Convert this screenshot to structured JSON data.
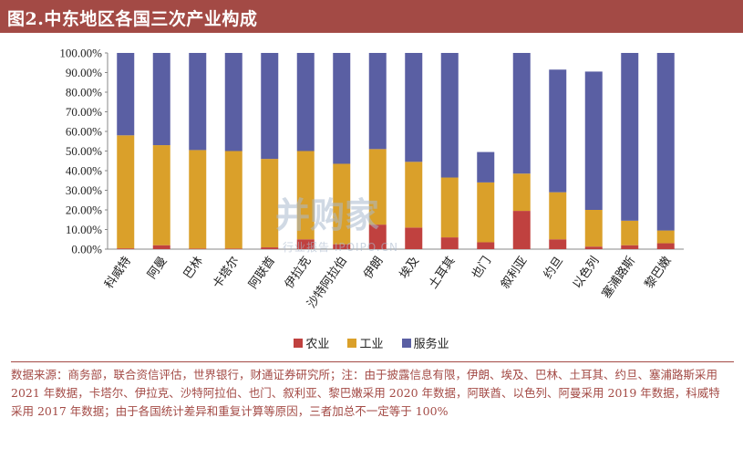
{
  "header": {
    "title": "图2.中东地区各国三次产业构成"
  },
  "colors": {
    "agriculture": "#c0413f",
    "industry": "#daa02a",
    "services": "#5a5fa3",
    "accent": "#a34a45"
  },
  "chart_data": {
    "type": "bar",
    "stacked": true,
    "categories": [
      "科威特",
      "阿曼",
      "巴林",
      "卡塔尔",
      "阿联酋",
      "伊拉克",
      "沙特阿拉伯",
      "伊朗",
      "埃及",
      "土耳其",
      "也门",
      "叙利亚",
      "约旦",
      "以色列",
      "塞浦路斯",
      "黎巴嫩"
    ],
    "series": [
      {
        "name": "农业",
        "color": "#c0413f",
        "values": [
          0.4,
          2.0,
          0.3,
          0.3,
          0.9,
          5.0,
          2.5,
          12.5,
          11.0,
          6.0,
          3.5,
          19.5,
          5.0,
          1.3,
          2.0,
          3.0
        ]
      },
      {
        "name": "工业",
        "color": "#daa02a",
        "values": [
          57.6,
          51.0,
          50.2,
          49.7,
          45.1,
          45.0,
          41.0,
          38.5,
          33.5,
          30.5,
          30.5,
          19.0,
          24.0,
          18.7,
          12.5,
          6.5
        ]
      },
      {
        "name": "服务业",
        "color": "#5a5fa3",
        "values": [
          42.0,
          47.0,
          49.5,
          50.0,
          54.0,
          50.0,
          56.5,
          49.0,
          55.5,
          63.5,
          15.5,
          61.5,
          62.5,
          70.5,
          85.5,
          90.5
        ]
      }
    ],
    "yticks": [
      "0.00%",
      "10.00%",
      "20.00%",
      "30.00%",
      "40.00%",
      "50.00%",
      "60.00%",
      "70.00%",
      "80.00%",
      "90.00%",
      "100.00%"
    ],
    "ylim": [
      0,
      100
    ],
    "legend": "bottom"
  },
  "watermark": {
    "main": "并购家",
    "sub": "行业报告 IPOIPO.CN"
  },
  "source": {
    "text": "数据来源：商务部，联合资信评估，世界银行，财通证券研究所；注：由于披露信息有限，伊朗、埃及、巴林、土耳其、约旦、塞浦路斯采用 2021 年数据，卡塔尔、伊拉克、沙特阿拉伯、也门、叙利亚、黎巴嫩采用 2020 年数据，阿联酋、以色列、阿曼采用 2019 年数据，科威特采用 2017 年数据；由于各国统计差异和重复计算等原因，三者加总不一定等于 100%"
  }
}
